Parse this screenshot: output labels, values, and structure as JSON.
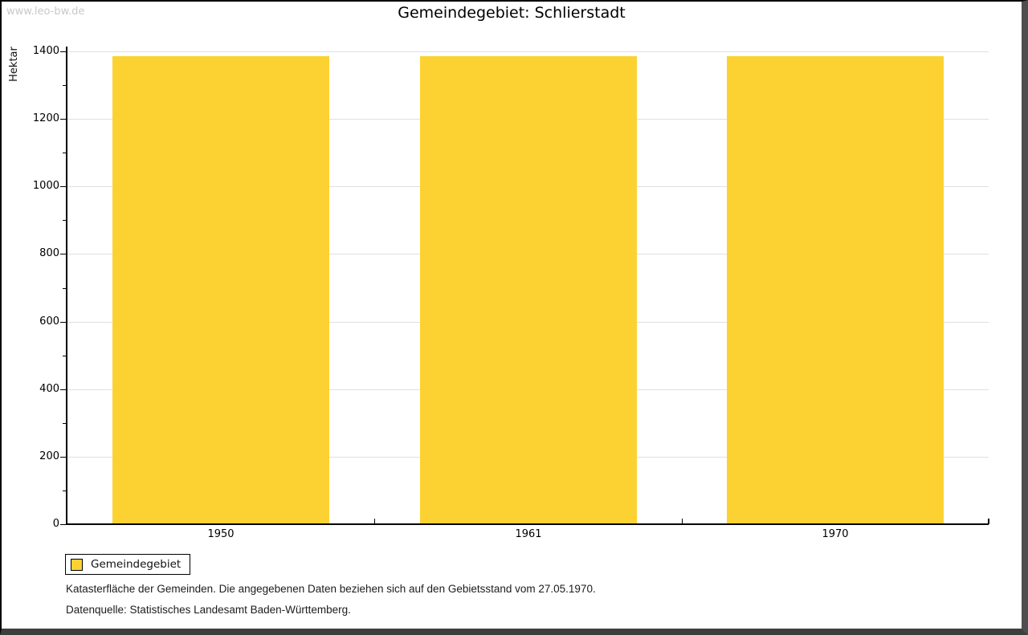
{
  "watermark": "www.leo-bw.de",
  "title": "Gemeindegebiet: Schlierstadt",
  "chart_data": {
    "type": "bar",
    "title": "Gemeindegebiet: Schlierstadt",
    "categories": [
      "1950",
      "1961",
      "1970"
    ],
    "series": [
      {
        "name": "Gemeindegebiet",
        "values": [
          1385,
          1385,
          1385
        ]
      }
    ],
    "xlabel": "",
    "ylabel": "Hektar",
    "ylim": [
      0,
      1400
    ],
    "y_major_step": 200,
    "y_minor_step": 100,
    "grid": true,
    "bar_color": "#FCD232",
    "gridline_color": "#e0e0e0",
    "legend_position": "bottom-left",
    "legend_entries": [
      "Gemeindegebiet"
    ]
  },
  "legend": {
    "label": "Gemeindegebiet",
    "swatch_color": "#FCD232"
  },
  "footer": {
    "line1": "Katasterfläche der Gemeinden. Die angegebenen Daten beziehen sich auf den Gebietsstand vom 27.05.1970.",
    "line2": "Datenquelle: Statistisches Landesamt Baden-Württemberg."
  },
  "colors": {
    "bar": "#FCD232",
    "gridline": "#e0e0e0",
    "axis": "#000000",
    "watermark": "#c9c9c9",
    "frame_shadow": "#4e4e4e"
  }
}
